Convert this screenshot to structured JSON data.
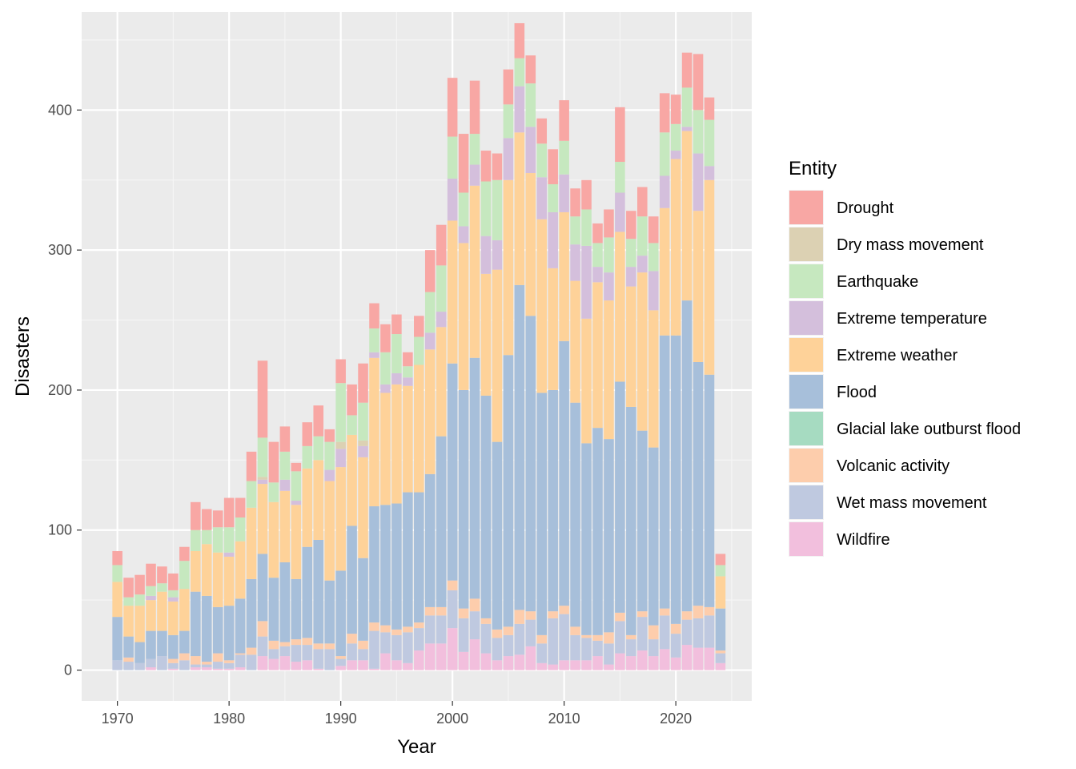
{
  "chart_data": {
    "type": "bar",
    "stacked": true,
    "title": "",
    "xlabel": "Year",
    "ylabel": "Disasters",
    "xlim": [
      1966.8,
      2026.8
    ],
    "ylim": [
      -22,
      470
    ],
    "x_ticks": [
      "1970",
      "1980",
      "1990",
      "2000",
      "2010",
      "2020"
    ],
    "y_ticks": [
      "0",
      "100",
      "200",
      "300",
      "400"
    ],
    "grid": true,
    "legend_position": "right",
    "legend_title": "Entity",
    "years": [
      1970,
      1971,
      1972,
      1973,
      1974,
      1975,
      1976,
      1977,
      1978,
      1979,
      1980,
      1981,
      1982,
      1983,
      1984,
      1985,
      1986,
      1987,
      1988,
      1989,
      1990,
      1991,
      1992,
      1993,
      1994,
      1995,
      1996,
      1997,
      1998,
      1999,
      2000,
      2001,
      2002,
      2003,
      2004,
      2005,
      2006,
      2007,
      2008,
      2009,
      2010,
      2011,
      2012,
      2013,
      2014,
      2015,
      2016,
      2017,
      2018,
      2019,
      2020,
      2021,
      2022,
      2023,
      2024
    ],
    "series": [
      {
        "name": "Wildfire",
        "color": "#F2BFDD",
        "values": [
          0,
          0,
          0,
          2,
          0,
          1,
          0,
          2,
          2,
          1,
          1,
          2,
          0,
          10,
          8,
          10,
          6,
          7,
          1,
          0,
          3,
          7,
          7,
          1,
          12,
          7,
          5,
          14,
          19,
          19,
          30,
          13,
          22,
          12,
          7,
          10,
          11,
          17,
          5,
          4,
          7,
          7,
          7,
          10,
          4,
          12,
          10,
          14,
          10,
          15,
          9,
          18,
          16,
          16,
          5
        ]
      },
      {
        "name": "Wet mass movement",
        "color": "#BFC9E0",
        "values": [
          7,
          6,
          5,
          6,
          10,
          4,
          7,
          2,
          2,
          5,
          4,
          9,
          11,
          14,
          7,
          7,
          12,
          11,
          14,
          15,
          5,
          12,
          8,
          27,
          15,
          18,
          22,
          16,
          20,
          20,
          27,
          24,
          20,
          21,
          16,
          15,
          22,
          19,
          14,
          33,
          33,
          18,
          16,
          11,
          15,
          23,
          12,
          24,
          12,
          24,
          17,
          18,
          21,
          23,
          7
        ]
      },
      {
        "name": "Volcanic activity",
        "color": "#FDCDAC",
        "values": [
          0,
          3,
          0,
          0,
          0,
          3,
          5,
          6,
          2,
          6,
          2,
          1,
          5,
          11,
          6,
          3,
          4,
          5,
          4,
          4,
          2,
          7,
          6,
          6,
          5,
          4,
          4,
          4,
          6,
          6,
          7,
          7,
          9,
          4,
          6,
          6,
          10,
          6,
          6,
          5,
          6,
          6,
          2,
          4,
          8,
          6,
          3,
          4,
          10,
          5,
          7,
          6,
          9,
          6,
          2
        ]
      },
      {
        "name": "Glacial lake outburst flood",
        "color": "#A6DBC1",
        "values": [
          0,
          0,
          0,
          0,
          0,
          0,
          0,
          0,
          0,
          0,
          0,
          0,
          0,
          0,
          0,
          0,
          0,
          0,
          0,
          0,
          0,
          0,
          0,
          0,
          0,
          0,
          0,
          0,
          0,
          0,
          0,
          0,
          0,
          0,
          0,
          0,
          0,
          0,
          0,
          0,
          0,
          0,
          0,
          0,
          0,
          0,
          0,
          0,
          0,
          0,
          0,
          0,
          0,
          0,
          0
        ]
      },
      {
        "name": "Flood",
        "color": "#A7BFDA",
        "values": [
          31,
          15,
          15,
          20,
          18,
          17,
          16,
          46,
          47,
          33,
          39,
          39,
          49,
          48,
          45,
          57,
          43,
          65,
          74,
          45,
          61,
          77,
          59,
          83,
          86,
          90,
          96,
          93,
          95,
          122,
          155,
          156,
          172,
          159,
          134,
          194,
          232,
          211,
          173,
          158,
          189,
          160,
          137,
          148,
          138,
          165,
          163,
          129,
          127,
          195,
          206,
          222,
          174,
          166,
          30
        ]
      },
      {
        "name": "Extreme weather",
        "color": "#FED299",
        "values": [
          25,
          22,
          26,
          22,
          28,
          24,
          30,
          29,
          37,
          39,
          35,
          41,
          51,
          50,
          54,
          51,
          53,
          56,
          57,
          71,
          74,
          65,
          72,
          106,
          80,
          85,
          76,
          91,
          89,
          78,
          102,
          105,
          123,
          87,
          123,
          125,
          109,
          102,
          124,
          87,
          92,
          87,
          89,
          104,
          99,
          107,
          86,
          113,
          98,
          91,
          126,
          121,
          108,
          139,
          23
        ]
      },
      {
        "name": "Extreme temperature",
        "color": "#D4BFDC",
        "values": [
          0,
          0,
          0,
          3,
          0,
          3,
          0,
          0,
          0,
          0,
          3,
          0,
          0,
          3,
          0,
          8,
          3,
          0,
          0,
          8,
          13,
          0,
          8,
          4,
          6,
          8,
          6,
          0,
          12,
          11,
          30,
          12,
          15,
          27,
          21,
          30,
          33,
          33,
          30,
          40,
          27,
          26,
          52,
          11,
          20,
          28,
          14,
          12,
          28,
          23,
          6,
          3,
          41,
          10,
          0
        ]
      },
      {
        "name": "Dry mass movement",
        "color": "#DCD1B3",
        "values": [
          0,
          0,
          0,
          0,
          0,
          0,
          0,
          0,
          0,
          0,
          0,
          0,
          0,
          2,
          0,
          0,
          0,
          0,
          0,
          0,
          5,
          0,
          4,
          0,
          0,
          0,
          0,
          0,
          0,
          0,
          0,
          0,
          0,
          0,
          0,
          0,
          0,
          0,
          0,
          0,
          0,
          0,
          0,
          0,
          0,
          0,
          0,
          0,
          0,
          0,
          0,
          0,
          0,
          0,
          0
        ]
      },
      {
        "name": "Earthquake",
        "color": "#C6E8BF",
        "values": [
          12,
          6,
          8,
          7,
          6,
          5,
          20,
          15,
          10,
          18,
          18,
          17,
          19,
          28,
          14,
          20,
          21,
          16,
          17,
          20,
          42,
          14,
          27,
          17,
          23,
          28,
          8,
          20,
          29,
          33,
          30,
          24,
          22,
          39,
          43,
          24,
          20,
          31,
          24,
          20,
          24,
          20,
          26,
          17,
          25,
          22,
          20,
          28,
          20,
          31,
          19,
          28,
          31,
          33,
          8
        ]
      },
      {
        "name": "Drought",
        "color": "#F8A7A4",
        "values": [
          10,
          14,
          14,
          16,
          12,
          12,
          10,
          20,
          15,
          12,
          21,
          14,
          21,
          55,
          29,
          18,
          6,
          17,
          22,
          9,
          17,
          22,
          28,
          18,
          20,
          14,
          10,
          15,
          30,
          29,
          42,
          42,
          38,
          22,
          19,
          25,
          25,
          20,
          18,
          25,
          29,
          20,
          21,
          14,
          20,
          39,
          20,
          21,
          19,
          28,
          21,
          25,
          40,
          16,
          8
        ]
      }
    ]
  },
  "legend": {
    "title": "Entity",
    "items": [
      {
        "label": "Drought",
        "color": "#F8A7A4"
      },
      {
        "label": "Dry mass movement",
        "color": "#DCD1B3"
      },
      {
        "label": "Earthquake",
        "color": "#C6E8BF"
      },
      {
        "label": "Extreme temperature",
        "color": "#D4BFDC"
      },
      {
        "label": "Extreme weather",
        "color": "#FED299"
      },
      {
        "label": "Flood",
        "color": "#A7BFDA"
      },
      {
        "label": "Glacial lake outburst flood",
        "color": "#A6DBC1"
      },
      {
        "label": "Volcanic activity",
        "color": "#FDCDAC"
      },
      {
        "label": "Wet mass movement",
        "color": "#BFC9E0"
      },
      {
        "label": "Wildfire",
        "color": "#F2BFDD"
      }
    ]
  },
  "colors": {
    "panel_background": "#EBEBEB",
    "grid_major": "#FFFFFF",
    "axis_text": "#4D4D4D"
  }
}
